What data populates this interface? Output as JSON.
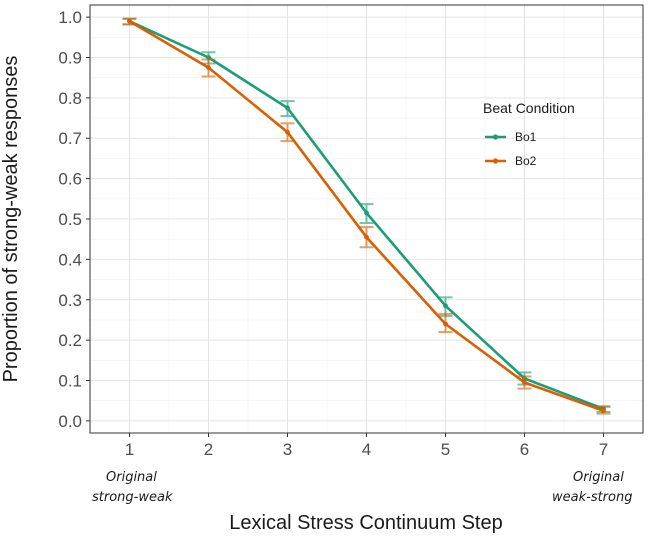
{
  "chart_data": {
    "type": "line",
    "title": "",
    "xlabel": "Lexical Stress Continuum Step",
    "ylabel": "Proportion of strong-weak responses",
    "x": [
      1,
      2,
      3,
      4,
      5,
      6,
      7
    ],
    "x_tick_labels": [
      "1",
      "2",
      "3",
      "4",
      "5",
      "6",
      "7"
    ],
    "y_tick_labels": [
      "0.0",
      "0.1",
      "0.2",
      "0.3",
      "0.4",
      "0.5",
      "0.6",
      "0.7",
      "0.8",
      "0.9",
      "1.0"
    ],
    "xlim": [
      0.5,
      7.5
    ],
    "ylim": [
      -0.03,
      1.03
    ],
    "grid": true,
    "legend": {
      "title": "Beat Condition",
      "position": "right"
    },
    "series": [
      {
        "name": "Bo1",
        "color": "#1b9e77",
        "values": [
          0.99,
          0.9,
          0.775,
          0.515,
          0.285,
          0.105,
          0.03
        ],
        "err_low": [
          0.982,
          0.885,
          0.755,
          0.49,
          0.26,
          0.09,
          0.022
        ],
        "err_high": [
          0.996,
          0.913,
          0.792,
          0.537,
          0.306,
          0.12,
          0.036
        ]
      },
      {
        "name": "Bo2",
        "color": "#d95f02",
        "values": [
          0.99,
          0.875,
          0.715,
          0.455,
          0.24,
          0.095,
          0.025
        ],
        "err_low": [
          0.982,
          0.853,
          0.693,
          0.43,
          0.22,
          0.08,
          0.018
        ],
        "err_high": [
          0.996,
          0.895,
          0.737,
          0.48,
          0.265,
          0.11,
          0.035
        ]
      }
    ],
    "annotations": [
      {
        "text_line1": "Original",
        "text_line2": "strong-weak",
        "at_x": 1
      },
      {
        "text_line1": "Original",
        "text_line2": "weak-strong",
        "at_x": 7
      }
    ]
  }
}
